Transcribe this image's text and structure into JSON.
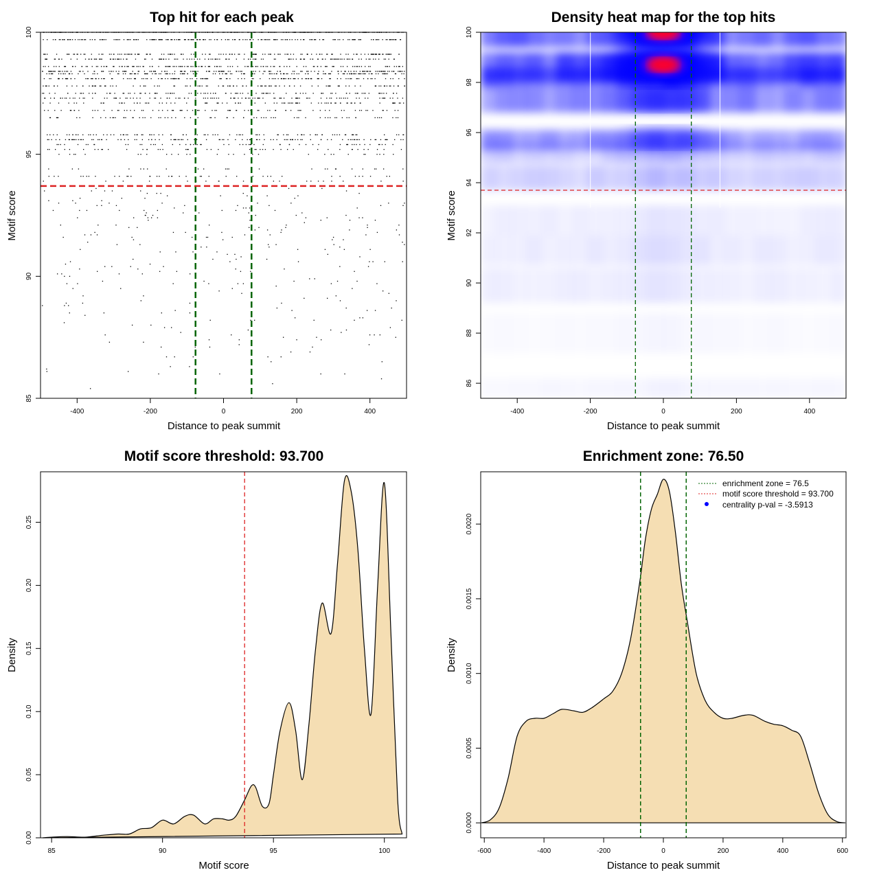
{
  "chart_data": [
    {
      "type": "scatter",
      "title": "Top hit for each peak",
      "xlabel": "Distance to peak summit",
      "ylabel": "Motif score",
      "xlim": [
        -500,
        500
      ],
      "ylim": [
        85,
        100
      ],
      "xticks": [
        -400,
        -200,
        0,
        200,
        400
      ],
      "yticks": [
        85,
        90,
        95,
        100
      ],
      "hlines": [
        {
          "y": 93.7,
          "color": "#dd2222",
          "style": "dashed"
        }
      ],
      "vlines": [
        {
          "x": -76.5,
          "color": "#006400",
          "style": "dashed"
        },
        {
          "x": 76.5,
          "color": "#006400",
          "style": "dashed"
        }
      ],
      "score_levels": [
        {
          "y": 100,
          "count": 320
        },
        {
          "y": 99.7,
          "count": 200
        },
        {
          "y": 99.1,
          "count": 150
        },
        {
          "y": 98.9,
          "count": 140
        },
        {
          "y": 98.6,
          "count": 150
        },
        {
          "y": 98.4,
          "count": 160
        },
        {
          "y": 98.3,
          "count": 140
        },
        {
          "y": 98.1,
          "count": 140
        },
        {
          "y": 97.8,
          "count": 110
        },
        {
          "y": 97.5,
          "count": 100
        },
        {
          "y": 97.3,
          "count": 110
        },
        {
          "y": 97.1,
          "count": 90
        },
        {
          "y": 96.8,
          "count": 80
        },
        {
          "y": 96.5,
          "count": 70
        },
        {
          "y": 95.8,
          "count": 90
        },
        {
          "y": 95.6,
          "count": 110
        },
        {
          "y": 95.4,
          "count": 60
        },
        {
          "y": 95.2,
          "count": 45
        },
        {
          "y": 95.0,
          "count": 30
        },
        {
          "y": 94.4,
          "count": 25
        },
        {
          "y": 94.1,
          "count": 40
        },
        {
          "y": 93.9,
          "count": 20
        }
      ],
      "sparse_range": [
        85.3,
        93.6
      ],
      "sparse_count": 300
    },
    {
      "type": "heatmap",
      "title": "Density heat map for the top hits",
      "xlabel": "Distance to peak summit",
      "ylabel": "Motif score",
      "xlim": [
        -500,
        500
      ],
      "ylim": [
        85.4,
        100
      ],
      "xticks": [
        -400,
        -200,
        0,
        200,
        400
      ],
      "yticks": [
        86,
        88,
        90,
        92,
        94,
        96,
        98,
        100
      ],
      "colorscale": [
        "#ffffff",
        "#0000ff",
        "#ff0000"
      ],
      "hlines": [
        {
          "y": 93.7,
          "color": "#dd2222",
          "style": "dashed"
        }
      ],
      "vlines": [
        {
          "x": -76.5,
          "color": "#006400",
          "style": "dashed"
        },
        {
          "x": 76.5,
          "color": "#006400",
          "style": "dashed"
        }
      ],
      "hotspots": [
        {
          "x": 0,
          "y": 100,
          "intensity": 1.0
        },
        {
          "x": 0,
          "y": 98.7,
          "intensity": 1.0
        },
        {
          "x": 0,
          "y": 97.3,
          "intensity": 0.45
        },
        {
          "x": 0,
          "y": 95.8,
          "intensity": 0.35
        }
      ]
    },
    {
      "type": "area",
      "title": "Motif score threshold: 93.700",
      "xlabel": "Motif score",
      "ylabel": "Density",
      "xlim": [
        84.5,
        101
      ],
      "ylim": [
        0,
        0.29
      ],
      "xticks": [
        85,
        90,
        95,
        100
      ],
      "yticks": [
        0.0,
        0.05,
        0.1,
        0.15,
        0.2,
        0.25
      ],
      "ytick_labels": [
        "0.00",
        "0.05",
        "0.10",
        "0.15",
        "0.20",
        "0.25"
      ],
      "fill": "#f5deb3",
      "vlines": [
        {
          "x": 93.7,
          "color": "#dd2222",
          "style": "dashed"
        }
      ],
      "x": [
        84.6,
        85,
        85.7,
        86.5,
        87.3,
        88,
        88.5,
        89,
        89.5,
        90,
        90.5,
        91,
        91.4,
        91.9,
        92.3,
        92.7,
        93,
        93.3,
        93.7,
        94,
        94.2,
        94.5,
        94.8,
        95,
        95.3,
        95.7,
        96,
        96.3,
        96.6,
        96.9,
        97.2,
        97.6,
        97.9,
        98.2,
        98.5,
        98.8,
        99.1,
        99.4,
        99.7,
        100,
        100.3,
        100.6,
        100.8
      ],
      "y": [
        0,
        0.0005,
        0.001,
        0.0005,
        0.002,
        0.003,
        0.003,
        0.007,
        0.008,
        0.014,
        0.011,
        0.017,
        0.018,
        0.011,
        0.015,
        0.015,
        0.014,
        0.017,
        0.03,
        0.041,
        0.04,
        0.025,
        0.027,
        0.05,
        0.085,
        0.107,
        0.085,
        0.046,
        0.09,
        0.15,
        0.186,
        0.162,
        0.22,
        0.283,
        0.275,
        0.23,
        0.15,
        0.098,
        0.2,
        0.281,
        0.16,
        0.03,
        0.003
      ]
    },
    {
      "type": "area",
      "title": "Enrichment zone: 76.50",
      "xlabel": "Distance to peak summit",
      "ylabel": "Density",
      "xlim": [
        -612,
        612
      ],
      "ylim": [
        -0.0001,
        0.00235
      ],
      "xticks": [
        -600,
        -400,
        -200,
        0,
        200,
        400,
        600
      ],
      "yticks": [
        0.0,
        0.0005,
        0.001,
        0.0015,
        0.002
      ],
      "ytick_labels": [
        "0.0000",
        "0.0005",
        "0.0010",
        "0.0015",
        "0.0020"
      ],
      "fill": "#f5deb3",
      "vlines": [
        {
          "x": -76.5,
          "color": "#006400",
          "style": "dashed"
        },
        {
          "x": 76.5,
          "color": "#006400",
          "style": "dashed"
        }
      ],
      "legend": {
        "position": "top-right",
        "items": [
          {
            "label": "enrichment zone = 76.5",
            "color": "#006400",
            "kind": "line"
          },
          {
            "label": "motif score threshold = 93.700",
            "color": "#dd2222",
            "kind": "line"
          },
          {
            "label": "centrality p-val = -3.5913",
            "color": "#0000ff",
            "kind": "point"
          }
        ]
      },
      "x": [
        -610,
        -580,
        -550,
        -520,
        -490,
        -460,
        -430,
        -400,
        -370,
        -340,
        -300,
        -270,
        -240,
        -200,
        -170,
        -140,
        -110,
        -80,
        -60,
        -40,
        -20,
        0,
        20,
        40,
        60,
        80,
        110,
        140,
        170,
        200,
        230,
        270,
        300,
        340,
        370,
        400,
        430,
        460,
        490,
        520,
        550,
        580,
        610
      ],
      "y": [
        0,
        2e-05,
        0.0001,
        0.0003,
        0.00058,
        0.00068,
        0.0007,
        0.0007,
        0.00073,
        0.00076,
        0.00075,
        0.00074,
        0.00077,
        0.00083,
        0.00088,
        0.001,
        0.00123,
        0.0016,
        0.0019,
        0.0021,
        0.0022,
        0.0023,
        0.00222,
        0.00195,
        0.0016,
        0.00135,
        0.001,
        0.00082,
        0.00074,
        0.0007,
        0.0007,
        0.00072,
        0.00072,
        0.00068,
        0.00066,
        0.00065,
        0.00062,
        0.00058,
        0.0004,
        0.0002,
        6e-05,
        1e-05,
        0
      ]
    }
  ]
}
